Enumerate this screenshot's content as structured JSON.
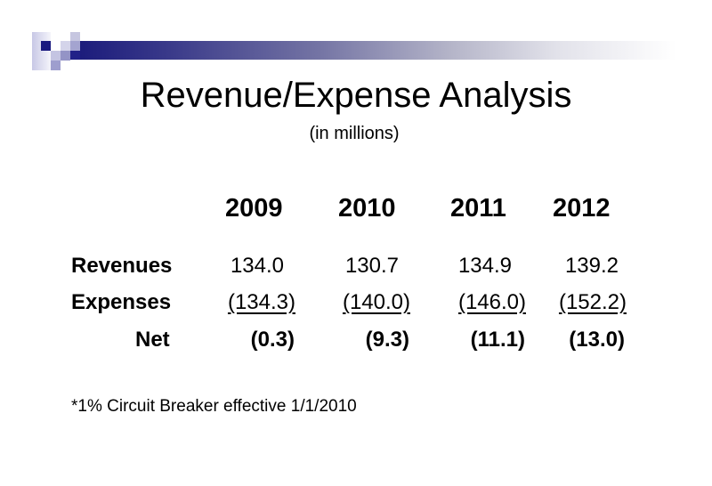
{
  "slide": {
    "title": "Revenue/Expense Analysis",
    "subtitle": "(in millions)",
    "accent_color": "#1c1c7c",
    "table": {
      "years": [
        "2009",
        "2010",
        "2011",
        "2012"
      ],
      "rows": [
        {
          "label": "Revenues",
          "values": [
            "134.0",
            "130.7",
            "134.9",
            "139.2"
          ]
        },
        {
          "label": "Expenses",
          "values": [
            "(134.3)",
            "(140.0)",
            "(146.0)",
            "(152.2)"
          ]
        },
        {
          "label": "Net",
          "values": [
            "(0.3)",
            "(9.3)",
            "(11.1)",
            "(13.0)"
          ]
        }
      ]
    },
    "footnote": "*1% Circuit Breaker effective 1/1/2010"
  }
}
